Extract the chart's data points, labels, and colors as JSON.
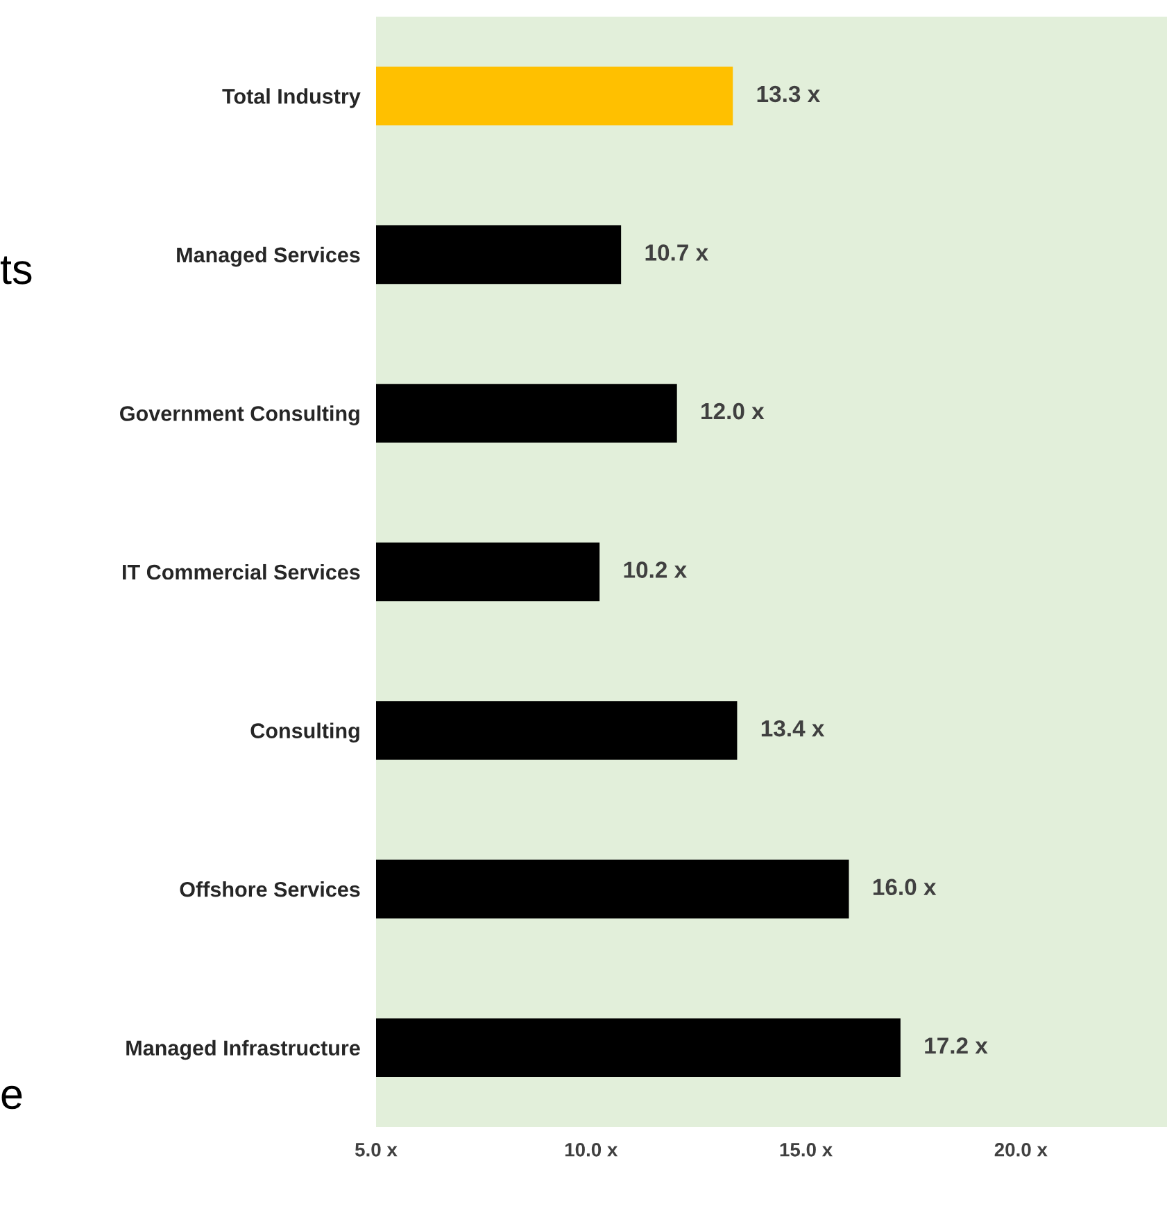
{
  "chart_data": {
    "type": "bar",
    "orientation": "horizontal",
    "categories": [
      "Total Industry",
      "Managed Services",
      "Government Consulting",
      "IT Commercial Services",
      "Consulting",
      "Offshore Services",
      "Managed Infrastructure"
    ],
    "values": [
      13.3,
      10.7,
      12.0,
      10.2,
      13.4,
      16.0,
      17.2
    ],
    "colors": [
      "#ffc000",
      "#000000",
      "#000000",
      "#000000",
      "#000000",
      "#000000",
      "#000000"
    ],
    "value_labels": [
      "13.3 x",
      "10.7 x",
      "12.0 x",
      "10.2 x",
      "13.4 x",
      "16.0 x",
      "17.2 x"
    ],
    "xlim": [
      5,
      23.4
    ],
    "xticks": [
      {
        "value": 5,
        "label": "5.0 x"
      },
      {
        "value": 10,
        "label": "10.0 x"
      },
      {
        "value": 15,
        "label": "15.0 x"
      },
      {
        "value": 20,
        "label": "20.0 x"
      }
    ],
    "grid": false,
    "legend": false,
    "annotations": [
      "ts",
      "e"
    ]
  }
}
